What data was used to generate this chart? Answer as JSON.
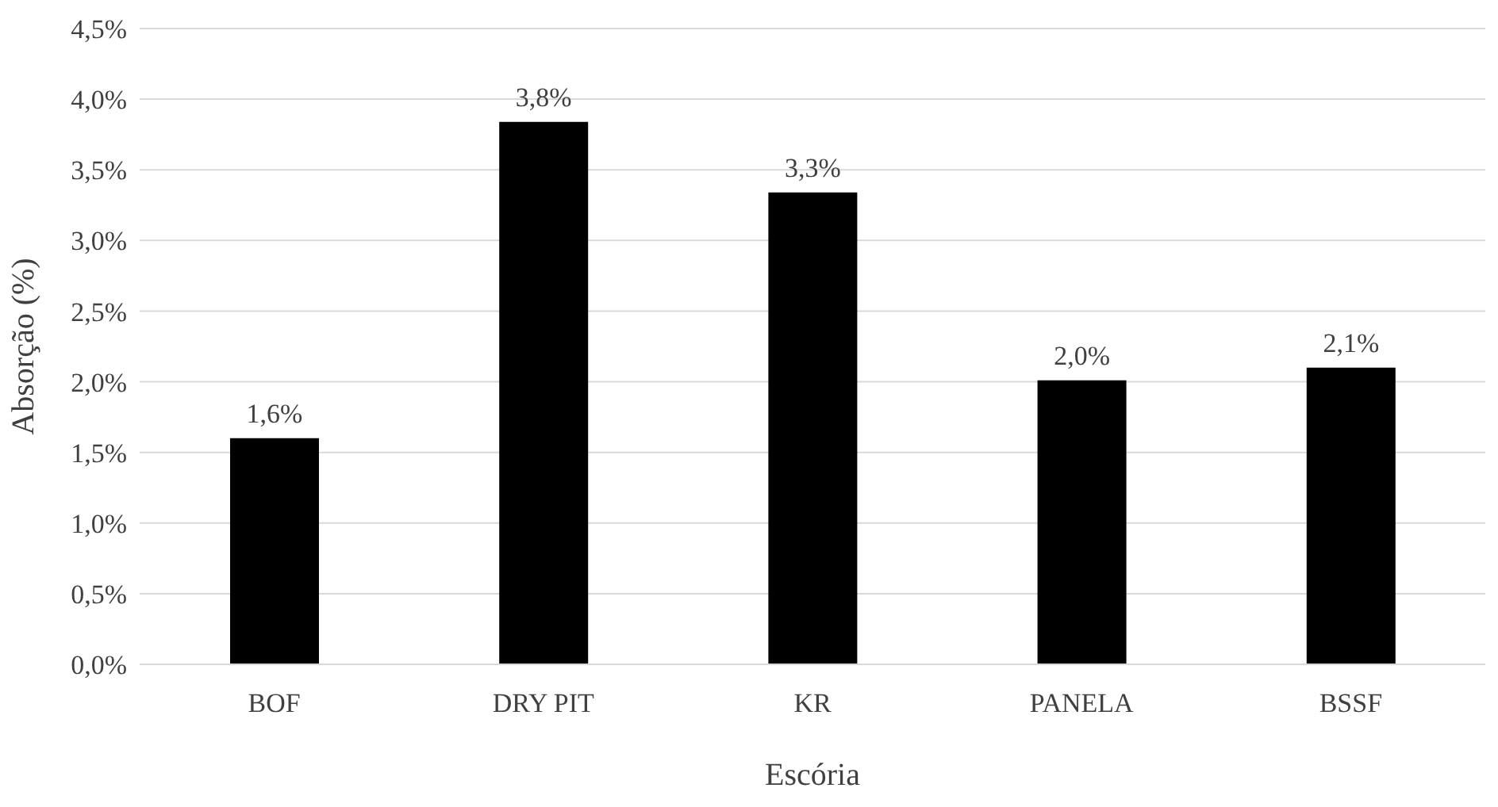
{
  "chart_data": {
    "type": "bar",
    "xlabel": "Escória",
    "ylabel": "Absorção (%)",
    "categories": [
      "BOF",
      "DRY PIT",
      "KR",
      "PANELA",
      "BSSF"
    ],
    "values": [
      1.6,
      3.84,
      3.34,
      2.01,
      2.1
    ],
    "value_labels": [
      "1,6%",
      "3,8%",
      "3,3%",
      "2,0%",
      "2,1%"
    ],
    "color": "#000000",
    "ylim": [
      0,
      4.5
    ],
    "yticks": [
      {
        "value": 0,
        "label": "0,0%"
      },
      {
        "value": 0.5,
        "label": "0,5%"
      },
      {
        "value": 1,
        "label": "1,0%"
      },
      {
        "value": 1.5,
        "label": "1,5%"
      },
      {
        "value": 2,
        "label": "2,0%"
      },
      {
        "value": 2.5,
        "label": "2,5%"
      },
      {
        "value": 3,
        "label": "3,0%"
      },
      {
        "value": 3.5,
        "label": "3,5%"
      },
      {
        "value": 4,
        "label": "4,0%"
      },
      {
        "value": 4.5,
        "label": "4,5%"
      }
    ],
    "grid": "y",
    "legend": false
  }
}
